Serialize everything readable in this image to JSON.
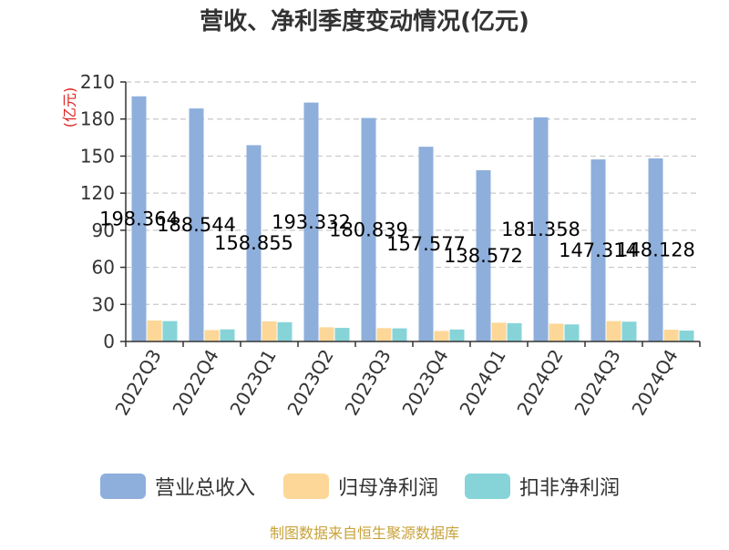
{
  "chart_data": {
    "type": "bar",
    "title": "营收、净利季度变动情况(亿元)",
    "ylabel": "(亿元)",
    "ylim": [
      0,
      210
    ],
    "yticks": [
      0,
      30,
      60,
      90,
      120,
      150,
      180,
      210
    ],
    "grid": true,
    "legend_position": "bottom",
    "categories": [
      "2022Q3",
      "2022Q4",
      "2023Q1",
      "2023Q2",
      "2023Q3",
      "2023Q4",
      "2024Q1",
      "2024Q2",
      "2024Q3",
      "2024Q4"
    ],
    "series": [
      {
        "name": "营业总收入",
        "color": "#8eafdb",
        "values": [
          198.364,
          188.544,
          158.855,
          193.332,
          180.839,
          157.577,
          138.572,
          181.358,
          147.314,
          148.128
        ],
        "labels": [
          "198.364",
          "188.544",
          "158.855",
          "193.332",
          "180.839",
          "157.577",
          "138.572",
          "181.358",
          "147.314",
          "148.128"
        ]
      },
      {
        "name": "归母净利润",
        "color": "#fcd797",
        "values": [
          17.0,
          9.2,
          16.3,
          11.5,
          10.8,
          8.5,
          15.2,
          14.4,
          16.5,
          9.5
        ]
      },
      {
        "name": "扣非净利润",
        "color": "#86d4d8",
        "values": [
          16.5,
          9.8,
          15.6,
          11.0,
          10.6,
          9.7,
          14.8,
          13.8,
          16.0,
          8.8
        ]
      }
    ]
  },
  "footer": {
    "source": "制图数据来自恒生聚源数据库"
  }
}
